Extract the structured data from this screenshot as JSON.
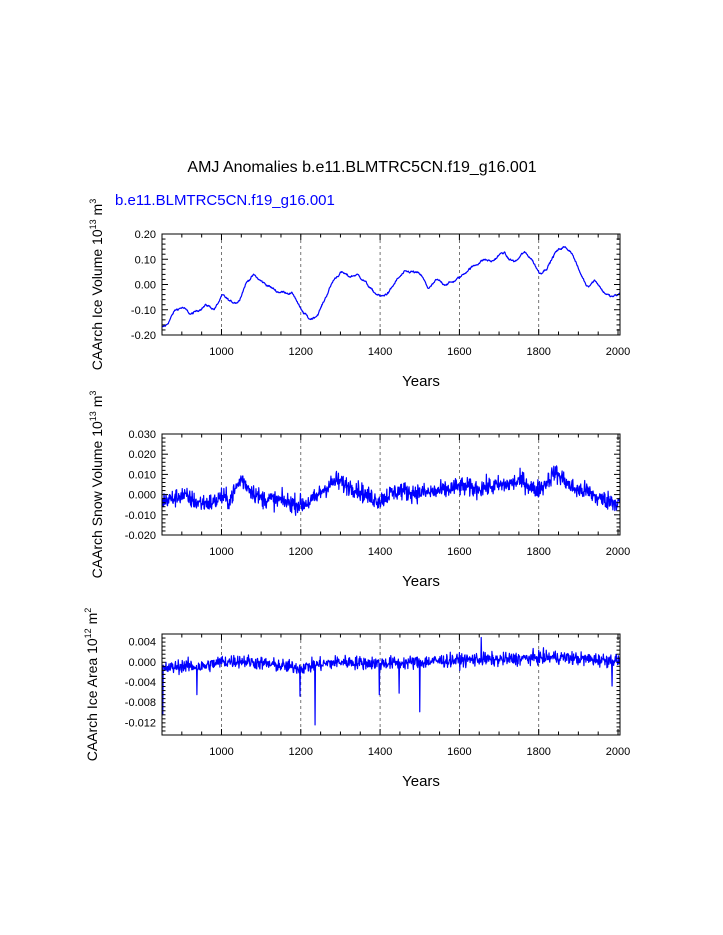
{
  "figure": {
    "title": "AMJ Anomalies b.e11.BLMTRC5CN.f19_g16.001",
    "series_label": "b.e11.BLMTRC5CN.f19_g16.001",
    "series_color": "#0000ff"
  },
  "chart_data": [
    {
      "type": "line",
      "title": "",
      "xlabel": "Years",
      "ylabel": {
        "main": "CAArch Ice Volume 10",
        "exp": "13",
        "unit": " m",
        "unit_exp": "3"
      },
      "xlim": [
        850,
        2005
      ],
      "ylim": [
        -0.2,
        0.2
      ],
      "xticks": [
        1000,
        1200,
        1400,
        1600,
        1800,
        2000
      ],
      "yticks": [
        -0.2,
        -0.1,
        0.0,
        0.1,
        0.2
      ],
      "ytick_labels": [
        "-0.20",
        "-0.10",
        "0.00",
        "0.10",
        "0.20"
      ],
      "grid_x": [
        1000,
        1200,
        1400,
        1600,
        1800
      ],
      "noise": 0.006,
      "series": [
        {
          "name": "b.e11.BLMTRC5CN.f19_g16.001",
          "x": [
            850,
            860,
            880,
            900,
            920,
            940,
            960,
            980,
            1000,
            1020,
            1040,
            1060,
            1080,
            1090,
            1100,
            1120,
            1140,
            1160,
            1180,
            1200,
            1210,
            1220,
            1240,
            1260,
            1280,
            1300,
            1320,
            1340,
            1360,
            1380,
            1400,
            1420,
            1440,
            1460,
            1480,
            1500,
            1520,
            1540,
            1560,
            1580,
            1600,
            1620,
            1640,
            1660,
            1680,
            1700,
            1710,
            1720,
            1740,
            1760,
            1780,
            1800,
            1820,
            1840,
            1860,
            1880,
            1900,
            1920,
            1940,
            1960,
            1980,
            2000,
            2005
          ],
          "y": [
            -0.17,
            -0.16,
            -0.1,
            -0.09,
            -0.12,
            -0.1,
            -0.08,
            -0.1,
            -0.04,
            -0.07,
            -0.07,
            0.01,
            0.04,
            0.02,
            0.01,
            -0.01,
            -0.03,
            -0.03,
            -0.04,
            -0.11,
            -0.12,
            -0.14,
            -0.12,
            -0.05,
            0.02,
            0.05,
            0.03,
            0.04,
            0.01,
            -0.03,
            -0.05,
            -0.03,
            0.02,
            0.05,
            0.05,
            0.04,
            -0.02,
            0.02,
            0.0,
            0.01,
            0.03,
            0.06,
            0.08,
            0.1,
            0.09,
            0.12,
            0.13,
            0.1,
            0.09,
            0.13,
            0.1,
            0.04,
            0.07,
            0.13,
            0.15,
            0.13,
            0.05,
            -0.01,
            0.02,
            -0.03,
            -0.05,
            -0.04,
            -0.03
          ]
        }
      ]
    },
    {
      "type": "line",
      "title": "",
      "xlabel": "Years",
      "ylabel": {
        "main": "CAArch Snow Volume 10",
        "exp": "13",
        "unit": " m",
        "unit_exp": "3"
      },
      "xlim": [
        850,
        2005
      ],
      "ylim": [
        -0.02,
        0.03
      ],
      "xticks": [
        1000,
        1200,
        1400,
        1600,
        1800,
        2000
      ],
      "yticks": [
        -0.02,
        -0.01,
        0.0,
        0.01,
        0.02,
        0.03
      ],
      "ytick_labels": [
        "-0.020",
        "-0.010",
        "0.000",
        "0.010",
        "0.020",
        "0.030"
      ],
      "grid_x": [
        1000,
        1200,
        1400,
        1600,
        1800
      ],
      "noise": 0.0045,
      "series": [
        {
          "name": "b.e11.BLMTRC5CN.f19_g16.001",
          "x": [
            850,
            880,
            900,
            940,
            980,
            1000,
            1020,
            1050,
            1070,
            1100,
            1150,
            1200,
            1230,
            1260,
            1290,
            1310,
            1340,
            1370,
            1400,
            1420,
            1450,
            1480,
            1520,
            1560,
            1600,
            1640,
            1680,
            1720,
            1760,
            1790,
            1810,
            1840,
            1860,
            1880,
            1900,
            1920,
            1950,
            1980,
            2005
          ],
          "y": [
            -0.003,
            -0.002,
            0.0,
            -0.004,
            -0.004,
            -0.001,
            -0.003,
            0.008,
            0.003,
            -0.002,
            -0.003,
            -0.005,
            -0.003,
            0.003,
            0.007,
            0.005,
            0.003,
            -0.001,
            -0.003,
            0.0,
            0.002,
            0.001,
            0.001,
            0.002,
            0.004,
            0.003,
            0.004,
            0.005,
            0.007,
            0.002,
            0.004,
            0.011,
            0.008,
            0.004,
            0.002,
            0.002,
            -0.002,
            -0.003,
            -0.004
          ]
        }
      ]
    },
    {
      "type": "line",
      "title": "",
      "xlabel": "Years",
      "ylabel": {
        "main": "CAArch Ice Area 10",
        "exp": "12",
        "unit": " m",
        "unit_exp": "2"
      },
      "xlim": [
        850,
        2005
      ],
      "ylim": [
        -0.0145,
        0.0055
      ],
      "xticks": [
        1000,
        1200,
        1400,
        1600,
        1800,
        2000
      ],
      "yticks": [
        -0.012,
        -0.008,
        -0.004,
        0.0,
        0.004
      ],
      "ytick_labels": [
        "-0.012",
        "-0.008",
        "-0.004",
        "0.000",
        "0.004"
      ],
      "grid_x": [
        1000,
        1200,
        1400,
        1600,
        1800
      ],
      "noise": 0.0013,
      "spikes": [
        [
          852,
          -0.0105
        ],
        [
          938,
          -0.0065
        ],
        [
          1198,
          -0.0068
        ],
        [
          1236,
          -0.0125
        ],
        [
          1398,
          -0.0065
        ],
        [
          1448,
          -0.0062
        ],
        [
          1500,
          -0.0099
        ],
        [
          1655,
          0.0048
        ],
        [
          1985,
          -0.0048
        ]
      ],
      "series": [
        {
          "name": "b.e11.BLMTRC5CN.f19_g16.001",
          "x": [
            850,
            900,
            950,
            1000,
            1050,
            1100,
            1150,
            1200,
            1250,
            1300,
            1350,
            1400,
            1450,
            1500,
            1550,
            1600,
            1650,
            1700,
            1750,
            1800,
            1850,
            1900,
            1950,
            2005
          ],
          "y": [
            -0.0015,
            -0.0008,
            -0.001,
            0.0,
            0.0002,
            -0.0003,
            -0.0008,
            -0.0012,
            -0.0005,
            0.0,
            -0.0002,
            -0.0003,
            -0.0002,
            -0.0001,
            0.0002,
            0.0003,
            0.0005,
            0.0004,
            0.0006,
            0.0008,
            0.0009,
            0.0006,
            0.0004,
            0.0002
          ]
        }
      ]
    }
  ]
}
